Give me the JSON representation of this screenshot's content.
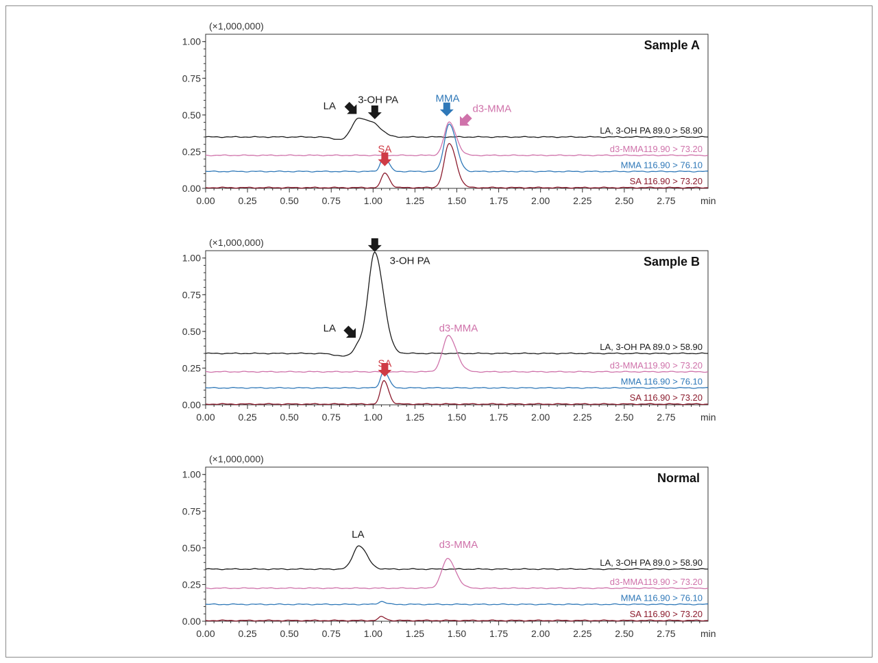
{
  "chart_data": [
    {
      "type": "line",
      "title": "Sample A",
      "multiplier": "(×1,000,000)",
      "x_unit": "min",
      "xlim": [
        0.0,
        3.0
      ],
      "ylim": [
        0.0,
        1.05
      ],
      "x_ticks": [
        "0.00",
        "0.25",
        "0.50",
        "0.75",
        "1.00",
        "1.25",
        "1.50",
        "1.75",
        "2.00",
        "2.25",
        "2.50",
        "2.75"
      ],
      "y_ticks": [
        "0.00",
        "0.25",
        "0.50",
        "0.75",
        "1.00"
      ],
      "series": [
        {
          "name": "LA, 3-OH PA 89.0 > 58.90",
          "color": "#1a1a1a",
          "baseline": 0.35,
          "peaks": [
            {
              "x": 0.91,
              "height": 0.14,
              "width": 0.04
            },
            {
              "x": 1.01,
              "height": 0.07,
              "width": 0.035
            }
          ],
          "dip": {
            "x": 0.84,
            "depth": 0.025
          }
        },
        {
          "name": "d3-MMA119.90 > 73.20",
          "color": "#cf72aa",
          "baseline": 0.225,
          "peaks": [
            {
              "x": 1.455,
              "height": 0.225,
              "width": 0.03
            }
          ]
        },
        {
          "name": "MMA 116.90 > 76.10",
          "color": "#2f78b8",
          "baseline": 0.115,
          "peaks": [
            {
              "x": 1.065,
              "height": 0.105,
              "width": 0.02
            },
            {
              "x": 1.455,
              "height": 0.325,
              "width": 0.03
            }
          ]
        },
        {
          "name": "SA 116.90 > 73.20",
          "color": "#8b1a2c",
          "baseline": 0.005,
          "peaks": [
            {
              "x": 1.07,
              "height": 0.1,
              "width": 0.02
            },
            {
              "x": 1.455,
              "height": 0.3,
              "width": 0.03
            }
          ]
        }
      ],
      "annotations": [
        {
          "text": "LA",
          "x": 0.74,
          "y": 0.54,
          "color": "#1a1a1a"
        },
        {
          "text": "3-OH PA",
          "x": 1.03,
          "y": 0.58,
          "color": "#1a1a1a"
        },
        {
          "text": "MMA",
          "x": 1.445,
          "y": 0.59,
          "color": "#2f78b8"
        },
        {
          "text": "d3-MMA",
          "x": 1.71,
          "y": 0.52,
          "color": "#cf72aa"
        },
        {
          "text": "SA",
          "x": 1.07,
          "y": 0.245,
          "color": "#cf3b45"
        }
      ],
      "arrows": [
        {
          "x": 0.89,
          "y": 0.52,
          "dir": "down-right",
          "color": "#1a1a1a"
        },
        {
          "x": 1.01,
          "y": 0.49,
          "dir": "down",
          "color": "#1a1a1a"
        },
        {
          "x": 1.44,
          "y": 0.51,
          "dir": "down",
          "color": "#2f78b8"
        },
        {
          "x": 1.53,
          "y": 0.44,
          "dir": "down-left",
          "color": "#cf72aa"
        },
        {
          "x": 1.07,
          "y": 0.17,
          "dir": "down",
          "color": "#cf3b45"
        }
      ]
    },
    {
      "type": "line",
      "title": "Sample B",
      "multiplier": "(×1,000,000)",
      "x_unit": "min",
      "xlim": [
        0.0,
        3.0
      ],
      "ylim": [
        0.0,
        1.05
      ],
      "x_ticks": [
        "0.00",
        "0.25",
        "0.50",
        "0.75",
        "1.00",
        "1.25",
        "1.50",
        "1.75",
        "2.00",
        "2.25",
        "2.50",
        "2.75"
      ],
      "y_ticks": [
        "0.00",
        "0.25",
        "0.50",
        "0.75",
        "1.00"
      ],
      "series": [
        {
          "name": "LA, 3-OH PA 89.0 > 58.90",
          "color": "#1a1a1a",
          "baseline": 0.35,
          "peaks": [
            {
              "x": 0.915,
              "height": 0.07,
              "width": 0.03
            },
            {
              "x": 1.01,
              "height": 0.685,
              "width": 0.038
            }
          ],
          "dip": {
            "x": 0.84,
            "depth": 0.02
          }
        },
        {
          "name": "d3-MMA119.90 > 73.20",
          "color": "#cf72aa",
          "baseline": 0.225,
          "peaks": [
            {
              "x": 1.45,
              "height": 0.245,
              "width": 0.035
            }
          ]
        },
        {
          "name": "MMA 116.90 > 76.10",
          "color": "#2f78b8",
          "baseline": 0.115,
          "peaks": [
            {
              "x": 1.065,
              "height": 0.115,
              "width": 0.02
            }
          ]
        },
        {
          "name": "SA 116.90 > 73.20",
          "color": "#8b1a2c",
          "baseline": 0.005,
          "peaks": [
            {
              "x": 1.065,
              "height": 0.16,
              "width": 0.02
            }
          ]
        }
      ],
      "annotations": [
        {
          "text": "3-OH PA",
          "x": 1.22,
          "y": 0.96,
          "color": "#1a1a1a"
        },
        {
          "text": "LA",
          "x": 0.74,
          "y": 0.5,
          "color": "#1a1a1a"
        },
        {
          "text": "d3-MMA",
          "x": 1.51,
          "y": 0.5,
          "color": "#cf72aa"
        },
        {
          "text": "SA",
          "x": 1.07,
          "y": 0.26,
          "color": "#cf3b45"
        }
      ],
      "arrows": [
        {
          "x": 1.01,
          "y": 1.06,
          "dir": "down",
          "color": "#1a1a1a"
        },
        {
          "x": 0.885,
          "y": 0.47,
          "dir": "down-right",
          "color": "#1a1a1a"
        },
        {
          "x": 1.07,
          "y": 0.21,
          "dir": "down",
          "color": "#cf3b45"
        }
      ]
    },
    {
      "type": "line",
      "title": "Normal",
      "multiplier": "(×1,000,000)",
      "x_unit": "min",
      "xlim": [
        0.0,
        3.0
      ],
      "ylim": [
        0.0,
        1.05
      ],
      "x_ticks": [
        "0.00",
        "0.25",
        "0.50",
        "0.75",
        "1.00",
        "1.25",
        "1.50",
        "1.75",
        "2.00",
        "2.25",
        "2.50",
        "2.75"
      ],
      "y_ticks": [
        "0.00",
        "0.25",
        "0.50",
        "0.75",
        "1.00"
      ],
      "series": [
        {
          "name": "LA, 3-OH PA 89.0 > 58.90",
          "color": "#1a1a1a",
          "baseline": 0.355,
          "peaks": [
            {
              "x": 0.915,
              "height": 0.16,
              "width": 0.035
            }
          ]
        },
        {
          "name": "d3-MMA119.90 > 73.20",
          "color": "#cf72aa",
          "baseline": 0.225,
          "peaks": [
            {
              "x": 1.445,
              "height": 0.2,
              "width": 0.035
            }
          ]
        },
        {
          "name": "MMA 116.90 > 76.10",
          "color": "#2f78b8",
          "baseline": 0.115,
          "peaks": [
            {
              "x": 1.05,
              "height": 0.02,
              "width": 0.018
            }
          ]
        },
        {
          "name": "SA 116.90 > 73.20",
          "color": "#8b1a2c",
          "baseline": 0.005,
          "peaks": [
            {
              "x": 1.05,
              "height": 0.025,
              "width": 0.018
            }
          ]
        }
      ],
      "annotations": [
        {
          "text": "LA",
          "x": 0.91,
          "y": 0.57,
          "color": "#1a1a1a"
        },
        {
          "text": "d3-MMA",
          "x": 1.51,
          "y": 0.5,
          "color": "#cf72aa"
        }
      ],
      "arrows": []
    }
  ]
}
